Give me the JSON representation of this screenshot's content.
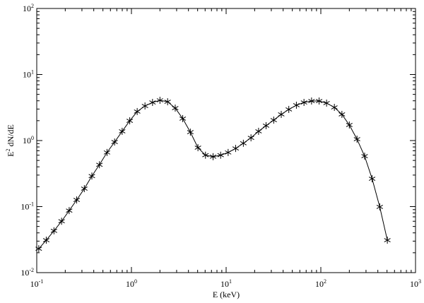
{
  "chart_data": {
    "type": "line",
    "xlabel": "E (keV)",
    "ylabel": [
      "E",
      "2",
      " dN/dE"
    ],
    "xlog": true,
    "ylog": true,
    "x": [
      0.105,
      0.126,
      0.152,
      0.183,
      0.22,
      0.264,
      0.318,
      0.382,
      0.459,
      0.552,
      0.664,
      0.798,
      0.959,
      1.15,
      1.39,
      1.67,
      2.0,
      2.41,
      2.9,
      3.48,
      4.19,
      5.04,
      6.05,
      7.28,
      8.75,
      10.5,
      12.6,
      15.2,
      18.3,
      22.0,
      26.4,
      31.8,
      38.2,
      45.9,
      55.2,
      66.4,
      79.8,
      95.9,
      115,
      139,
      167,
      200,
      241,
      290,
      348,
      419,
      504
    ],
    "series": [
      {
        "color": "#000000",
        "marker": "asterisk",
        "values": [
          0.023,
          0.031,
          0.043,
          0.06,
          0.087,
          0.126,
          0.187,
          0.29,
          0.43,
          0.66,
          0.95,
          1.38,
          1.99,
          2.75,
          3.34,
          3.78,
          4.07,
          3.87,
          3.1,
          2.15,
          1.34,
          0.78,
          0.6,
          0.57,
          0.6,
          0.66,
          0.76,
          0.91,
          1.1,
          1.38,
          1.68,
          2.04,
          2.49,
          2.96,
          3.43,
          3.78,
          3.97,
          3.97,
          3.69,
          3.18,
          2.49,
          1.72,
          1.05,
          0.58,
          0.264,
          0.099,
          0.031
        ]
      }
    ],
    "xlim": [
      0.1,
      1000
    ],
    "ylim": [
      0.01,
      100
    ],
    "xticks": [
      {
        "value": 0.1,
        "label": "10",
        "sup": "-1"
      },
      {
        "value": 1,
        "label": "10",
        "sup": "0"
      },
      {
        "value": 10,
        "label": "10",
        "sup": "1"
      },
      {
        "value": 100,
        "label": "10",
        "sup": "2"
      },
      {
        "value": 1000,
        "label": "10",
        "sup": "3"
      }
    ],
    "yticks": [
      {
        "value": 0.01,
        "label": "10",
        "sup": "-2"
      },
      {
        "value": 0.1,
        "label": "10",
        "sup": "-1"
      },
      {
        "value": 1,
        "label": "10",
        "sup": "0"
      },
      {
        "value": 10,
        "label": "10",
        "sup": "1"
      },
      {
        "value": 100,
        "label": "10",
        "sup": "2"
      }
    ],
    "minor_ticks": true
  }
}
